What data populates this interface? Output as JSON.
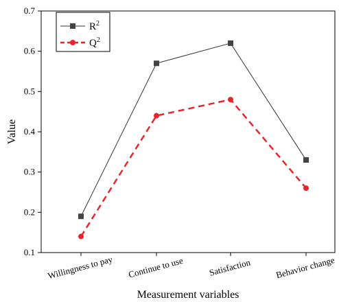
{
  "chart_data": {
    "type": "line",
    "categories": [
      "Willingness to pay",
      "Continue to use",
      "Satisfaction",
      "Behavior change"
    ],
    "series": [
      {
        "name": "R2",
        "label_base": "R",
        "label_sup": "2",
        "values": [
          0.19,
          0.57,
          0.62,
          0.33
        ],
        "color": "#333333",
        "marker": "square",
        "dash": "solid"
      },
      {
        "name": "Q2",
        "label_base": "Q",
        "label_sup": "2",
        "values": [
          0.14,
          0.44,
          0.48,
          0.26
        ],
        "color": "#e8252d",
        "marker": "circle",
        "dash": "dashed"
      }
    ],
    "xlabel": "Measurement variables",
    "ylabel": "Value",
    "ylim": [
      0.1,
      0.7
    ],
    "yticks": [
      "0.1",
      "0.2",
      "0.3",
      "0.4",
      "0.5",
      "0.6",
      "0.7"
    ],
    "grid": false,
    "legend_position": "top-left"
  }
}
